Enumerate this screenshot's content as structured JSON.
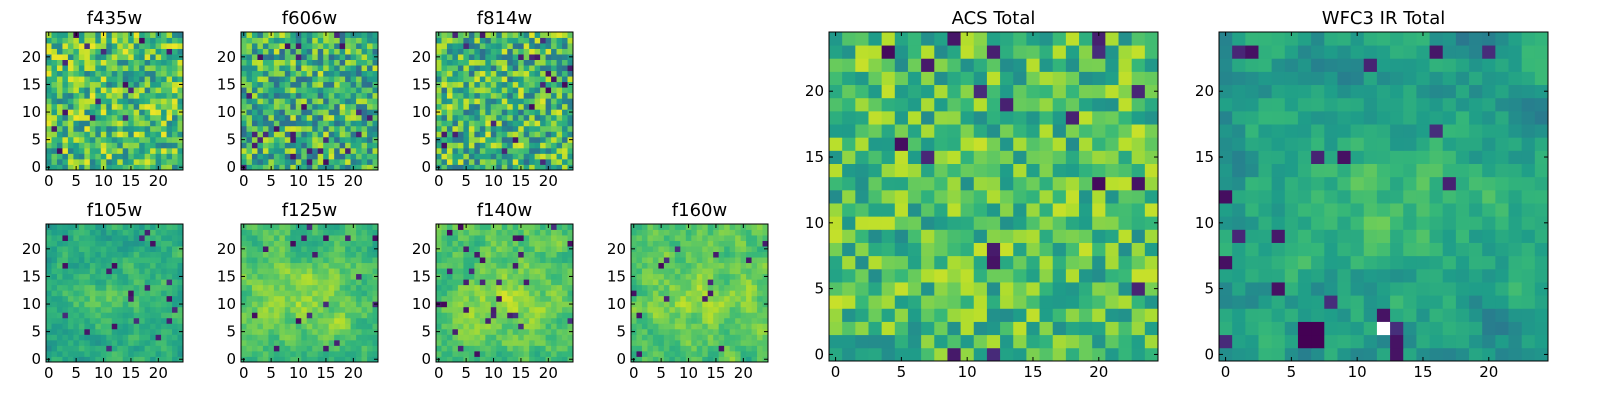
{
  "chart_data": [
    {
      "type": "heatmap",
      "title": "f435w",
      "xticks": [
        0,
        5,
        10,
        15,
        20
      ],
      "yticks": [
        0,
        5,
        10,
        15,
        20
      ],
      "xlim": [
        -0.5,
        24.5
      ],
      "ylim": [
        -0.5,
        24.5
      ],
      "grid_size": [
        25,
        25
      ],
      "data_note": "per-pixel values not readable; synthetic noise ~0.5-0.9 normalized",
      "seed": 11,
      "kind": "noise",
      "mean": 0.7,
      "spread": 0.28
    },
    {
      "type": "heatmap",
      "title": "f606w",
      "xticks": [
        0,
        5,
        10,
        15,
        20
      ],
      "yticks": [
        0,
        5,
        10,
        15,
        20
      ],
      "xlim": [
        -0.5,
        24.5
      ],
      "ylim": [
        -0.5,
        24.5
      ],
      "grid_size": [
        25,
        25
      ],
      "data_note": "per-pixel values not readable",
      "seed": 23,
      "kind": "noise",
      "mean": 0.64,
      "spread": 0.3
    },
    {
      "type": "heatmap",
      "title": "f814w",
      "xticks": [
        0,
        5,
        10,
        15,
        20
      ],
      "yticks": [
        0,
        5,
        10,
        15,
        20
      ],
      "xlim": [
        -0.5,
        24.5
      ],
      "ylim": [
        -0.5,
        24.5
      ],
      "grid_size": [
        25,
        25
      ],
      "data_note": "per-pixel values not readable",
      "seed": 37,
      "kind": "noise",
      "mean": 0.66,
      "spread": 0.3
    },
    {
      "type": "heatmap",
      "title": "f105w",
      "xticks": [
        0,
        5,
        10,
        15,
        20
      ],
      "yticks": [
        0,
        5,
        10,
        15,
        20
      ],
      "xlim": [
        -0.5,
        24.5
      ],
      "ylim": [
        -0.5,
        24.5
      ],
      "grid_size": [
        25,
        25
      ],
      "data_note": "per-pixel values not readable",
      "seed": 41,
      "kind": "smooth",
      "mean": 0.6,
      "spread": 0.22
    },
    {
      "type": "heatmap",
      "title": "f125w",
      "xticks": [
        0,
        5,
        10,
        15,
        20
      ],
      "yticks": [
        0,
        5,
        10,
        15,
        20
      ],
      "xlim": [
        -0.5,
        24.5
      ],
      "ylim": [
        -0.5,
        24.5
      ],
      "grid_size": [
        25,
        25
      ],
      "data_note": "per-pixel values not readable",
      "seed": 53,
      "kind": "smooth",
      "mean": 0.7,
      "spread": 0.22
    },
    {
      "type": "heatmap",
      "title": "f140w",
      "xticks": [
        0,
        5,
        10,
        15,
        20
      ],
      "yticks": [
        0,
        5,
        10,
        15,
        20
      ],
      "xlim": [
        -0.5,
        24.5
      ],
      "ylim": [
        -0.5,
        24.5
      ],
      "grid_size": [
        25,
        25
      ],
      "data_note": "per-pixel values not readable",
      "seed": 67,
      "kind": "smooth",
      "mean": 0.72,
      "spread": 0.22
    },
    {
      "type": "heatmap",
      "title": "f160w",
      "xticks": [
        0,
        5,
        10,
        15,
        20
      ],
      "yticks": [
        0,
        5,
        10,
        15,
        20
      ],
      "xlim": [
        -0.5,
        24.5
      ],
      "ylim": [
        -0.5,
        24.5
      ],
      "grid_size": [
        25,
        25
      ],
      "data_note": "per-pixel values not readable",
      "seed": 79,
      "kind": "smooth",
      "mean": 0.72,
      "spread": 0.22
    },
    {
      "type": "heatmap",
      "title": "ACS Total",
      "xticks": [
        0,
        5,
        10,
        15,
        20
      ],
      "yticks": [
        0,
        5,
        10,
        15,
        20
      ],
      "xlim": [
        -0.5,
        24.5
      ],
      "ylim": [
        -0.5,
        24.5
      ],
      "grid_size": [
        25,
        25
      ],
      "data_note": "per-pixel values not readable",
      "seed": 97,
      "kind": "noise",
      "mean": 0.7,
      "spread": 0.22
    },
    {
      "type": "heatmap",
      "title": "WFC3 IR Total",
      "xticks": [
        0,
        5,
        10,
        15,
        20
      ],
      "yticks": [
        0,
        5,
        10,
        15,
        20
      ],
      "xlim": [
        -0.5,
        24.5
      ],
      "ylim": [
        -0.5,
        24.5
      ],
      "grid_size": [
        25,
        25
      ],
      "data_note": "per-pixel values not readable; bright central band rows ~9-14; dark spots near (6-7,1-2) and (12-13,0-3); white pixel at (12,2)",
      "seed": 113,
      "kind": "smooth",
      "mean": 0.55,
      "spread": 0.25
    }
  ],
  "colormap": "viridis"
}
